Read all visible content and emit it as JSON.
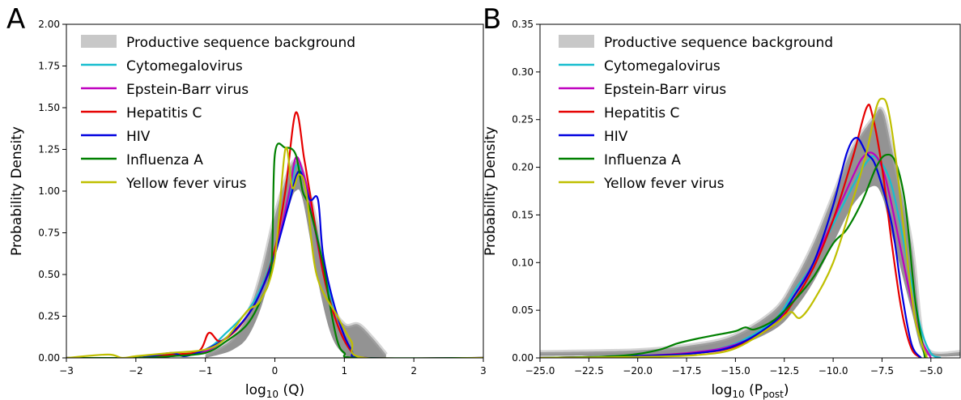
{
  "panels": [
    {
      "label": "A"
    },
    {
      "label": "B"
    }
  ],
  "legend": {
    "background_label": "Productive sequence background",
    "background_color": "#c8c8c8",
    "entries": [
      {
        "name": "Cytomegalovirus",
        "color": "#17becf"
      },
      {
        "name": "Epstein-Barr virus",
        "color": "#bf00bf"
      },
      {
        "name": "Hepatitis C",
        "color": "#e60000"
      },
      {
        "name": "HIV",
        "color": "#0000e0"
      },
      {
        "name": "Influenza A",
        "color": "#008000"
      },
      {
        "name": "Yellow fever virus",
        "color": "#bfbf00"
      }
    ]
  },
  "chart_data": [
    {
      "type": "line",
      "panel": "A",
      "xlabel_main": "log",
      "xlabel_sub": "10",
      "xlabel_rest": " (Q)",
      "ylabel": "Probability Density",
      "xlim": [
        -3,
        3
      ],
      "ylim": [
        0,
        2
      ],
      "xticks": [
        -3,
        -2,
        -1,
        0,
        1,
        2,
        3
      ],
      "xtick_labels": [
        "−3",
        "−2",
        "−1",
        "0",
        "1",
        "2",
        "3"
      ],
      "yticks": [
        0,
        0.25,
        0.5,
        0.75,
        1.0,
        1.25,
        1.5,
        1.75,
        2.0
      ],
      "ytick_labels": [
        "0.00",
        "0.25",
        "0.50",
        "0.75",
        "1.00",
        "1.25",
        "1.50",
        "1.75",
        "2.00"
      ],
      "background_band": {
        "x": [
          -1.0,
          -0.8,
          -0.6,
          -0.4,
          -0.2,
          0.0,
          0.2,
          0.3,
          0.4,
          0.6,
          0.8,
          1.0,
          1.2,
          1.4,
          1.6
        ],
        "low": [
          0.0,
          0.02,
          0.05,
          0.12,
          0.3,
          0.6,
          0.9,
          1.0,
          0.95,
          0.5,
          0.15,
          0.02,
          0.0,
          0.0,
          0.0
        ],
        "high": [
          0.02,
          0.06,
          0.12,
          0.25,
          0.5,
          0.85,
          1.12,
          1.18,
          1.12,
          0.8,
          0.35,
          0.2,
          0.2,
          0.12,
          0.02
        ]
      },
      "series": [
        {
          "name": "Cytomegalovirus",
          "x": [
            -3,
            -2,
            -1.5,
            -1,
            -0.7,
            -0.4,
            -0.2,
            0,
            0.2,
            0.3,
            0.4,
            0.5,
            0.7,
            0.9,
            1.1,
            1.3,
            3
          ],
          "y": [
            0,
            0,
            0.01,
            0.05,
            0.15,
            0.28,
            0.42,
            0.65,
            0.95,
            1.15,
            1.1,
            0.95,
            0.55,
            0.2,
            0.05,
            0.0,
            0
          ]
        },
        {
          "name": "Epstein-Barr virus",
          "x": [
            -3,
            -2,
            -1.5,
            -1,
            -0.7,
            -0.4,
            -0.2,
            0,
            0.2,
            0.3,
            0.4,
            0.5,
            0.7,
            0.9,
            1.1,
            1.3,
            3
          ],
          "y": [
            0,
            0,
            0.01,
            0.04,
            0.12,
            0.25,
            0.4,
            0.62,
            0.98,
            1.2,
            1.12,
            0.95,
            0.5,
            0.2,
            0.04,
            0.0,
            0
          ]
        },
        {
          "name": "Hepatitis C",
          "x": [
            -3,
            -2,
            -1.5,
            -1.1,
            -0.95,
            -0.8,
            -0.6,
            -0.4,
            -0.2,
            0,
            0.15,
            0.3,
            0.42,
            0.5,
            0.7,
            0.9,
            1.1,
            1.3,
            3
          ],
          "y": [
            0,
            0,
            0.02,
            0.04,
            0.15,
            0.1,
            0.15,
            0.25,
            0.4,
            0.65,
            1.0,
            1.47,
            1.2,
            1.0,
            0.5,
            0.2,
            0.04,
            0.0,
            0
          ]
        },
        {
          "name": "HIV",
          "x": [
            -3,
            -2,
            -1.5,
            -1.3,
            -1,
            -0.7,
            -0.4,
            -0.2,
            0,
            0.2,
            0.35,
            0.5,
            0.62,
            0.7,
            0.9,
            1.1,
            1.3,
            3
          ],
          "y": [
            0,
            0,
            0.03,
            0.01,
            0.05,
            0.12,
            0.25,
            0.4,
            0.62,
            0.92,
            1.12,
            0.95,
            0.95,
            0.6,
            0.25,
            0.05,
            0.0,
            0
          ]
        },
        {
          "name": "Influenza A",
          "x": [
            -3,
            -2,
            -1.5,
            -1,
            -0.7,
            -0.4,
            -0.2,
            -0.05,
            0.0,
            0.15,
            0.3,
            0.4,
            0.5,
            0.7,
            0.8,
            0.9,
            1.0,
            1.2,
            3
          ],
          "y": [
            0,
            0,
            0.01,
            0.03,
            0.1,
            0.2,
            0.35,
            0.55,
            1.22,
            1.26,
            1.22,
            1.0,
            0.9,
            0.55,
            0.3,
            0.1,
            0.03,
            0.0,
            0
          ]
        },
        {
          "name": "Yellow fever virus",
          "x": [
            -3,
            -2.4,
            -2.2,
            -2,
            -1.5,
            -1,
            -0.7,
            -0.4,
            -0.2,
            0,
            0.15,
            0.25,
            0.35,
            0.45,
            0.6,
            0.9,
            1.1,
            1.3,
            3
          ],
          "y": [
            0,
            0.02,
            0,
            0.01,
            0.03,
            0.05,
            0.12,
            0.28,
            0.35,
            0.6,
            1.25,
            1.02,
            1.1,
            1.0,
            0.5,
            0.25,
            0.1,
            0.0,
            0
          ]
        }
      ]
    },
    {
      "type": "line",
      "panel": "B",
      "xlabel_main": "log",
      "xlabel_sub": "10",
      "xlabel_rest": " (P",
      "xlabel_sub2": "post",
      "xlabel_end": ")",
      "ylabel": "Probability Density",
      "xlim": [
        -25,
        -3.5
      ],
      "ylim": [
        0,
        0.35
      ],
      "xticks": [
        -25,
        -22.5,
        -20,
        -17.5,
        -15,
        -12.5,
        -10,
        -7.5,
        -5
      ],
      "xtick_labels": [
        "−25.0",
        "−22.5",
        "−20.0",
        "−17.5",
        "−15.0",
        "−12.5",
        "−10.0",
        "−7.5",
        "−5.0"
      ],
      "yticks": [
        0,
        0.05,
        0.1,
        0.15,
        0.2,
        0.25,
        0.3,
        0.35
      ],
      "ytick_labels": [
        "0.00",
        "0.05",
        "0.10",
        "0.15",
        "0.20",
        "0.25",
        "0.30",
        "0.35"
      ],
      "background_band": {
        "x": [
          -25,
          -20,
          -17,
          -15,
          -13,
          -12,
          -11,
          -10,
          -9,
          -8,
          -7.5,
          -7,
          -6,
          -5.5,
          -5,
          -3.5
        ],
        "low": [
          0.002,
          0.003,
          0.006,
          0.012,
          0.03,
          0.05,
          0.08,
          0.12,
          0.16,
          0.18,
          0.17,
          0.13,
          0.05,
          0.01,
          0.002,
          0.002
        ],
        "high": [
          0.006,
          0.008,
          0.014,
          0.024,
          0.05,
          0.08,
          0.12,
          0.17,
          0.22,
          0.25,
          0.26,
          0.22,
          0.12,
          0.03,
          0.006,
          0.006
        ]
      },
      "series": [
        {
          "name": "Cytomegalovirus",
          "x": [
            -25,
            -20,
            -17,
            -15,
            -13,
            -12,
            -11,
            -10,
            -9,
            -8.3,
            -7.8,
            -7,
            -6,
            -5.5,
            -5,
            -4.5
          ],
          "y": [
            0,
            0.002,
            0.006,
            0.015,
            0.04,
            0.07,
            0.1,
            0.14,
            0.18,
            0.205,
            0.21,
            0.18,
            0.08,
            0.03,
            0.005,
            0
          ]
        },
        {
          "name": "Epstein-Barr virus",
          "x": [
            -25,
            -20,
            -17,
            -15,
            -13,
            -12,
            -11,
            -10,
            -9,
            -8.5,
            -8,
            -7.5,
            -7,
            -6,
            -5.5,
            -5
          ],
          "y": [
            0,
            0.002,
            0.006,
            0.014,
            0.035,
            0.065,
            0.1,
            0.145,
            0.19,
            0.21,
            0.215,
            0.2,
            0.16,
            0.06,
            0.02,
            0
          ]
        },
        {
          "name": "Hepatitis C",
          "x": [
            -25,
            -20,
            -17,
            -15,
            -13,
            -12,
            -11,
            -10,
            -9,
            -8.3,
            -8,
            -7.5,
            -7,
            -6.5,
            -6,
            -5.5
          ],
          "y": [
            0,
            0.002,
            0.005,
            0.012,
            0.035,
            0.06,
            0.095,
            0.145,
            0.21,
            0.262,
            0.255,
            0.2,
            0.12,
            0.05,
            0.01,
            0
          ]
        },
        {
          "name": "HIV",
          "x": [
            -25,
            -20,
            -17,
            -15,
            -13,
            -12,
            -11,
            -10,
            -9.3,
            -8.8,
            -8.3,
            -7.8,
            -7,
            -6.5,
            -6,
            -5.5
          ],
          "y": [
            0,
            0.002,
            0.005,
            0.013,
            0.038,
            0.065,
            0.1,
            0.16,
            0.215,
            0.231,
            0.215,
            0.2,
            0.14,
            0.07,
            0.015,
            0
          ]
        },
        {
          "name": "Influenza A",
          "x": [
            -25,
            -21,
            -19,
            -18,
            -17,
            -16,
            -15,
            -14.5,
            -14,
            -13,
            -12,
            -11,
            -10,
            -9.3,
            -8.5,
            -7.8,
            -7.3,
            -6.8,
            -6.3,
            -5.8,
            -5.3
          ],
          "y": [
            0,
            0.002,
            0.008,
            0.015,
            0.02,
            0.024,
            0.028,
            0.032,
            0.03,
            0.04,
            0.06,
            0.085,
            0.12,
            0.135,
            0.165,
            0.2,
            0.213,
            0.205,
            0.16,
            0.06,
            0
          ]
        },
        {
          "name": "Yellow fever virus",
          "x": [
            -25,
            -20,
            -17,
            -15,
            -13,
            -12.2,
            -11.7,
            -11,
            -10,
            -9,
            -8.3,
            -7.8,
            -7.5,
            -7.2,
            -6.8,
            -6.3,
            -5.8,
            -5.2
          ],
          "y": [
            0,
            0.001,
            0.003,
            0.01,
            0.035,
            0.048,
            0.042,
            0.06,
            0.1,
            0.165,
            0.215,
            0.262,
            0.272,
            0.262,
            0.21,
            0.12,
            0.04,
            0
          ]
        }
      ]
    }
  ]
}
